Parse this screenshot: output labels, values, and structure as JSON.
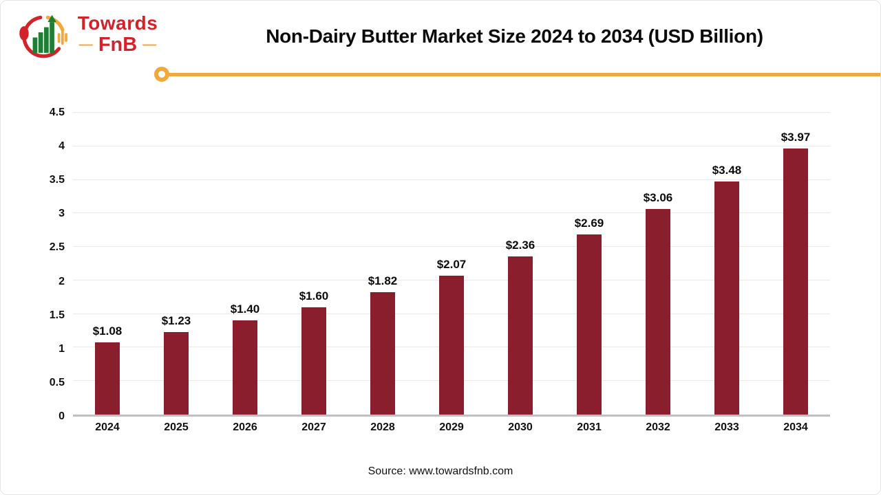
{
  "logo": {
    "brand_line1": "Towards",
    "brand_line2": "FnB",
    "dash": "—"
  },
  "header": {
    "title": "Non-Dairy Butter Market Size 2024 to 2034 (USD Billion)"
  },
  "footer": {
    "source": "Source: www.towardsfnb.com"
  },
  "colors": {
    "bar": "#8b1e2d",
    "accent": "#f2a93c",
    "grid": "#e9e9e9",
    "axis": "#c0c0c0",
    "brand_red": "#d2232a",
    "logo_green": "#1e7f33",
    "logo_yellow": "#f2a93c",
    "logo_red": "#d2232a",
    "title_text": "#0b0b0b"
  },
  "chart_data": {
    "type": "bar",
    "title": "Non-Dairy Butter Market Size 2024 to 2034 (USD Billion)",
    "categories": [
      "2024",
      "2025",
      "2026",
      "2027",
      "2028",
      "2029",
      "2030",
      "2031",
      "2032",
      "2033",
      "2034"
    ],
    "values": [
      1.08,
      1.23,
      1.4,
      1.6,
      1.82,
      2.07,
      2.36,
      2.69,
      3.06,
      3.48,
      3.97
    ],
    "value_labels": [
      "$1.08",
      "$1.23",
      "$1.40",
      "$1.60",
      "$1.82",
      "$2.07",
      "$2.36",
      "$2.69",
      "$3.06",
      "$3.48",
      "$3.97"
    ],
    "xlabel": "",
    "ylabel": "",
    "ylim": [
      0,
      4.5
    ],
    "yticks": [
      0,
      0.5,
      1,
      1.5,
      2,
      2.5,
      3,
      3.5,
      4,
      4.5
    ],
    "grid": true,
    "legend": false,
    "bar_unit": "USD Billion"
  }
}
